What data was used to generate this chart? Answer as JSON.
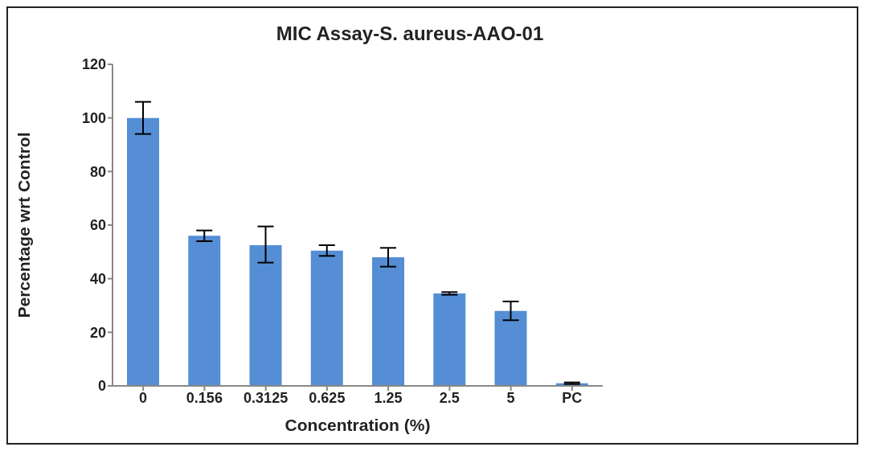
{
  "chart_data": {
    "type": "bar",
    "title": "MIC Assay-S. aureus-AAO-01",
    "xlabel": "Concentration (%)",
    "ylabel": "Percentage wrt Control",
    "categories": [
      "0",
      "0.156",
      "0.3125",
      "0.625",
      "1.25",
      "2.5",
      "5",
      "PC"
    ],
    "values": [
      100,
      56,
      52.5,
      50.5,
      48,
      34.5,
      28,
      1
    ],
    "errors": [
      6,
      2,
      [
        46,
        59.5
      ],
      2,
      3.5,
      0.5,
      3.5,
      0.3
    ],
    "color": "#558ed5",
    "ylim": [
      0,
      120
    ],
    "yticks": [
      0,
      20,
      40,
      60,
      80,
      100,
      120
    ],
    "grid": false,
    "legend": false
  }
}
